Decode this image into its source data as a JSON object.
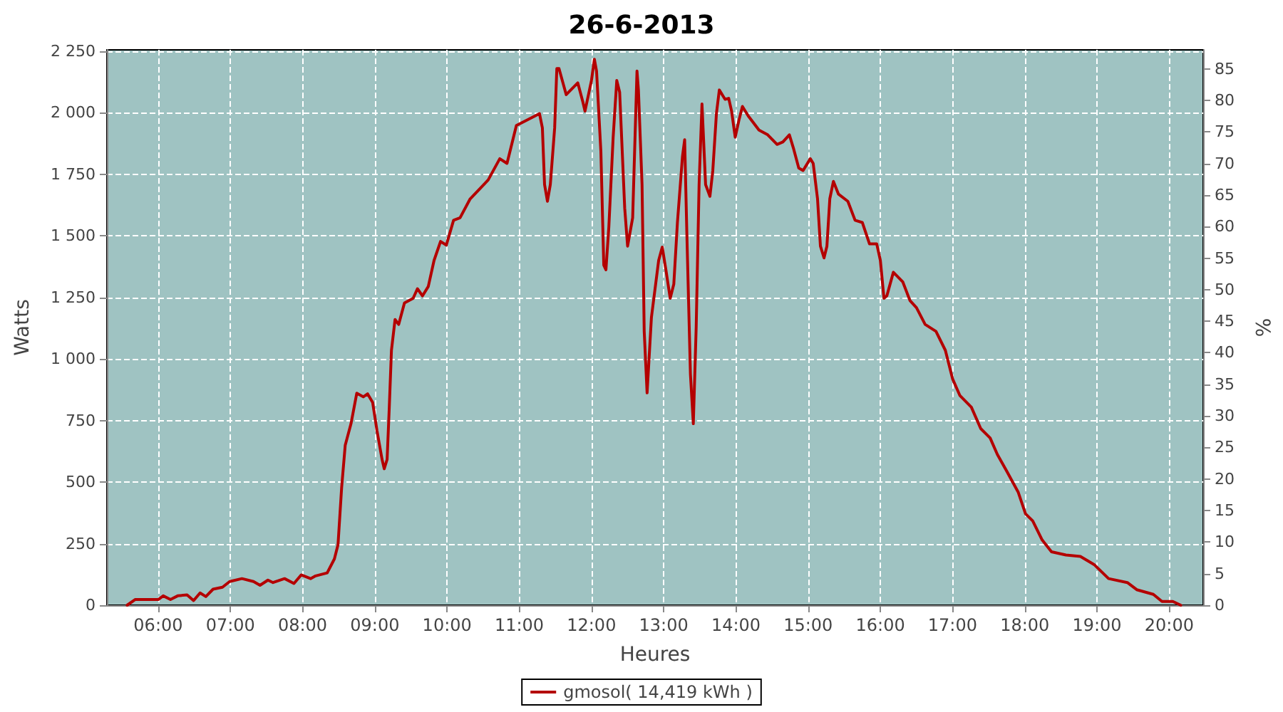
{
  "chart_data": {
    "type": "line",
    "title": "26-6-2013",
    "xlabel": "Heures",
    "ylabel": "Watts",
    "y2label": "%",
    "xlim": [
      5.29,
      20.47
    ],
    "xticks": [
      {
        "value": 6,
        "label": "06:00"
      },
      {
        "value": 7,
        "label": "07:00"
      },
      {
        "value": 8,
        "label": "08:00"
      },
      {
        "value": 9,
        "label": "09:00"
      },
      {
        "value": 10,
        "label": "10:00"
      },
      {
        "value": 11,
        "label": "11:00"
      },
      {
        "value": 12,
        "label": "12:00"
      },
      {
        "value": 13,
        "label": "13:00"
      },
      {
        "value": 14,
        "label": "14:00"
      },
      {
        "value": 15,
        "label": "15:00"
      },
      {
        "value": 16,
        "label": "16:00"
      },
      {
        "value": 17,
        "label": "17:00"
      },
      {
        "value": 18,
        "label": "18:00"
      },
      {
        "value": 19,
        "label": "19:00"
      },
      {
        "value": 20,
        "label": "20:00"
      }
    ],
    "ylim": [
      0,
      2255
    ],
    "yticks": [
      0,
      250,
      500,
      750,
      {
        "value": 1000,
        "label": "1 000"
      },
      {
        "value": 1250,
        "label": "1 250"
      },
      {
        "value": 1500,
        "label": "1 500"
      },
      {
        "value": 1750,
        "label": "1 750"
      },
      {
        "value": 2000,
        "label": "2 000"
      },
      {
        "value": 2250,
        "label": "2 250"
      }
    ],
    "y2lim": [
      0,
      88
    ],
    "y2ticks": [
      0,
      5,
      10,
      15,
      20,
      25,
      30,
      35,
      40,
      45,
      50,
      55,
      60,
      65,
      70,
      75,
      80,
      85
    ],
    "grid": true,
    "legend": "bottom",
    "marker": "none",
    "line_style": "solid",
    "series": [
      {
        "name": "gmosol( 14,419 kWh )",
        "color": "#b40000",
        "x": [
          5.57,
          5.68,
          6.0,
          6.07,
          6.17,
          6.27,
          6.4,
          6.49,
          6.58,
          6.66,
          6.76,
          6.89,
          6.99,
          7.16,
          7.32,
          7.41,
          7.52,
          7.59,
          7.75,
          7.88,
          7.98,
          8.11,
          8.18,
          8.34,
          8.44,
          8.49,
          8.54,
          8.59,
          8.67,
          8.75,
          8.84,
          8.9,
          8.97,
          9.03,
          9.1,
          9.13,
          9.17,
          9.2,
          9.23,
          9.28,
          9.33,
          9.41,
          9.53,
          9.59,
          9.66,
          9.74,
          9.82,
          9.91,
          9.99,
          10.09,
          10.18,
          10.32,
          10.51,
          10.57,
          10.73,
          10.83,
          10.96,
          11.22,
          11.28,
          11.32,
          11.35,
          11.39,
          11.43,
          11.49,
          11.52,
          11.55,
          11.65,
          11.81,
          11.88,
          11.91,
          12.0,
          12.04,
          12.07,
          12.13,
          12.17,
          12.2,
          12.24,
          12.3,
          12.35,
          12.39,
          12.46,
          12.5,
          12.57,
          12.63,
          12.65,
          12.7,
          12.73,
          12.77,
          12.83,
          12.93,
          12.98,
          13.03,
          13.09,
          13.14,
          13.19,
          13.26,
          13.29,
          13.32,
          13.37,
          13.41,
          13.45,
          13.49,
          13.53,
          13.58,
          13.64,
          13.68,
          13.73,
          13.77,
          13.85,
          13.9,
          13.94,
          13.99,
          14.04,
          14.09,
          14.17,
          14.32,
          14.44,
          14.57,
          14.65,
          14.74,
          14.8,
          14.87,
          14.93,
          15.03,
          15.07,
          15.13,
          15.17,
          15.22,
          15.26,
          15.3,
          15.35,
          15.42,
          15.55,
          15.65,
          15.75,
          15.85,
          15.95,
          16.0,
          16.05,
          16.09,
          16.18,
          16.31,
          16.41,
          16.5,
          16.62,
          16.77,
          16.9,
          17.0,
          17.1,
          17.26,
          17.39,
          17.52,
          17.62,
          17.75,
          17.91,
          18.01,
          18.11,
          18.24,
          18.37,
          18.57,
          18.77,
          18.96,
          19.16,
          19.42,
          19.55,
          19.78,
          19.9,
          20.05,
          20.16
        ],
        "values": [
          0,
          23,
          23,
          38,
          23,
          38,
          42,
          19,
          50,
          35,
          65,
          73,
          96,
          108,
          96,
          81,
          102,
          92,
          108,
          88,
          123,
          108,
          119,
          131,
          188,
          246,
          477,
          650,
          737,
          861,
          846,
          858,
          823,
          708,
          592,
          554,
          592,
          804,
          1035,
          1160,
          1140,
          1227,
          1246,
          1285,
          1256,
          1294,
          1400,
          1477,
          1462,
          1563,
          1573,
          1650,
          1708,
          1727,
          1813,
          1794,
          1948,
          1987,
          1996,
          1938,
          1708,
          1640,
          1708,
          1938,
          2179,
          2179,
          2073,
          2121,
          2044,
          2006,
          2131,
          2217,
          2169,
          1842,
          1381,
          1362,
          1535,
          1900,
          2131,
          2083,
          1612,
          1458,
          1573,
          2169,
          2092,
          1708,
          1112,
          862,
          1169,
          1400,
          1454,
          1362,
          1246,
          1304,
          1554,
          1823,
          1890,
          1515,
          938,
          737,
          1131,
          1708,
          2035,
          1708,
          1660,
          1765,
          1996,
          2092,
          2054,
          2058,
          2006,
          1900,
          1967,
          2025,
          1987,
          1929,
          1910,
          1871,
          1881,
          1910,
          1852,
          1775,
          1765,
          1813,
          1794,
          1650,
          1458,
          1410,
          1458,
          1650,
          1721,
          1669,
          1640,
          1563,
          1554,
          1467,
          1467,
          1400,
          1246,
          1256,
          1352,
          1313,
          1237,
          1208,
          1140,
          1112,
          1035,
          919,
          852,
          804,
          717,
          679,
          612,
          544,
          458,
          371,
          342,
          265,
          217,
          204,
          198,
          165,
          108,
          92,
          63,
          44,
          15,
          15,
          0
        ]
      }
    ]
  }
}
